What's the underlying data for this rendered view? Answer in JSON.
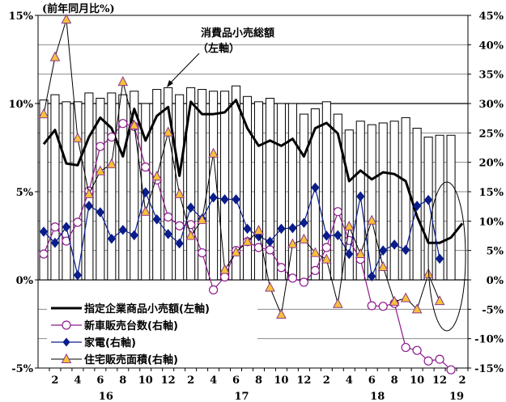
{
  "chart_data": {
    "type": "bar+line",
    "left_axis_label": "(前年同月比%)",
    "left_ticks": [
      "-5%",
      "0%",
      "5%",
      "10%",
      "15%"
    ],
    "right_ticks": [
      "-15%",
      "-10%",
      "-5%",
      "0%",
      "5%",
      "10%",
      "15%",
      "20%",
      "25%",
      "30%",
      "35%",
      "40%",
      "45%"
    ],
    "ylim_left": [
      -5,
      15
    ],
    "ylim_right": [
      -15,
      45
    ],
    "months": [
      "1",
      "2",
      "3",
      "4",
      "5",
      "6",
      "7",
      "8",
      "9",
      "10",
      "11",
      "12",
      "1",
      "2",
      "3",
      "4",
      "5",
      "6",
      "7",
      "8",
      "9",
      "10",
      "11",
      "12",
      "1",
      "2",
      "3",
      "4",
      "5",
      "6",
      "7",
      "8",
      "9",
      "10",
      "11",
      "12",
      "1",
      "2"
    ],
    "month_labels": [
      "2",
      "4",
      "6",
      "8",
      "10",
      "12",
      "2",
      "4",
      "6",
      "8",
      "10",
      "12",
      "2",
      "4",
      "6",
      "8",
      "10",
      "12",
      "2"
    ],
    "year_labels": [
      "16",
      "17",
      "18",
      "19"
    ],
    "annotation": {
      "line1": "消費品小売総額",
      "line2": "（左軸）"
    },
    "series": [
      {
        "name": "消費品小売総額（左軸）",
        "kind": "bar",
        "axis": "left",
        "values": [
          10.2,
          10.5,
          10.1,
          10.1,
          10.6,
          10.3,
          10.6,
          10.5,
          10.7,
          10.0,
          10.8,
          10.9,
          10.5,
          10.9,
          10.8,
          10.7,
          10.7,
          11.0,
          10.4,
          10.1,
          10.3,
          10.0,
          10.0,
          9.4,
          9.7,
          10.1,
          9.4,
          8.5,
          9.0,
          8.8,
          8.9,
          9.0,
          9.2,
          8.6,
          8.1,
          8.2,
          8.2
        ]
      },
      {
        "name": "指定企業商品小売額(左軸)",
        "kind": "line",
        "axis": "left",
        "values": [
          7.7,
          8.5,
          6.6,
          6.5,
          8.1,
          9.2,
          8.6,
          7.0,
          9.7,
          7.9,
          9.3,
          9.8,
          5.9,
          10.1,
          9.4,
          9.4,
          9.5,
          10.2,
          8.6,
          7.6,
          7.9,
          7.6,
          8.0,
          7.0,
          8.6,
          8.9,
          8.3,
          5.6,
          6.2,
          5.7,
          6.1,
          6.0,
          5.6,
          3.6,
          2.1,
          2.1,
          2.4,
          3.2
        ]
      },
      {
        "name": "新車販売台数(右軸)",
        "kind": "line",
        "axis": "right",
        "values": [
          4.4,
          9.0,
          6.6,
          9.8,
          15.1,
          22.7,
          24.3,
          26.6,
          26.1,
          19.2,
          17.0,
          10.7,
          9.2,
          9.4,
          4.6,
          -1.7,
          0.5,
          5.0,
          6.5,
          5.5,
          5.1,
          2.1,
          0.3,
          -0.4,
          1.6,
          5.5,
          11.6,
          6.7,
          3.5,
          -4.4,
          -4.5,
          -4.0,
          -11.5,
          -12.0,
          -13.8,
          -13.5,
          -15.3
        ]
      },
      {
        "name": "家電(右軸)",
        "kind": "line",
        "axis": "right",
        "values": [
          8.2,
          6.3,
          9.0,
          0.8,
          12.6,
          11.5,
          7.0,
          8.5,
          7.6,
          14.9,
          10.3,
          7.8,
          6.2,
          12.3,
          10.4,
          14.0,
          13.7,
          13.7,
          8.7,
          7.4,
          6.5,
          8.7,
          8.8,
          9.7,
          15.7,
          7.5,
          7.6,
          4.4,
          14.2,
          0.6,
          5.0,
          6.0,
          5.1,
          12.6,
          13.6,
          3.6
        ]
      },
      {
        "name": "住宅販売面積(右軸)",
        "kind": "line",
        "axis": "right",
        "values": [
          28.2,
          37.9,
          44.3,
          24.1,
          14.6,
          18.5,
          19.7,
          33.7,
          26.3,
          11.6,
          17.6,
          25.1,
          14.6,
          7.5,
          10.2,
          21.5,
          1.7,
          4.7,
          6.5,
          8.4,
          -1.3,
          -5.9,
          6.1,
          6.9,
          4.6,
          3.5,
          -4.1,
          9.1,
          4.4,
          10.1,
          2.2,
          -3.7,
          -3.1,
          -5.0,
          1.0,
          -3.6
        ]
      }
    ]
  }
}
